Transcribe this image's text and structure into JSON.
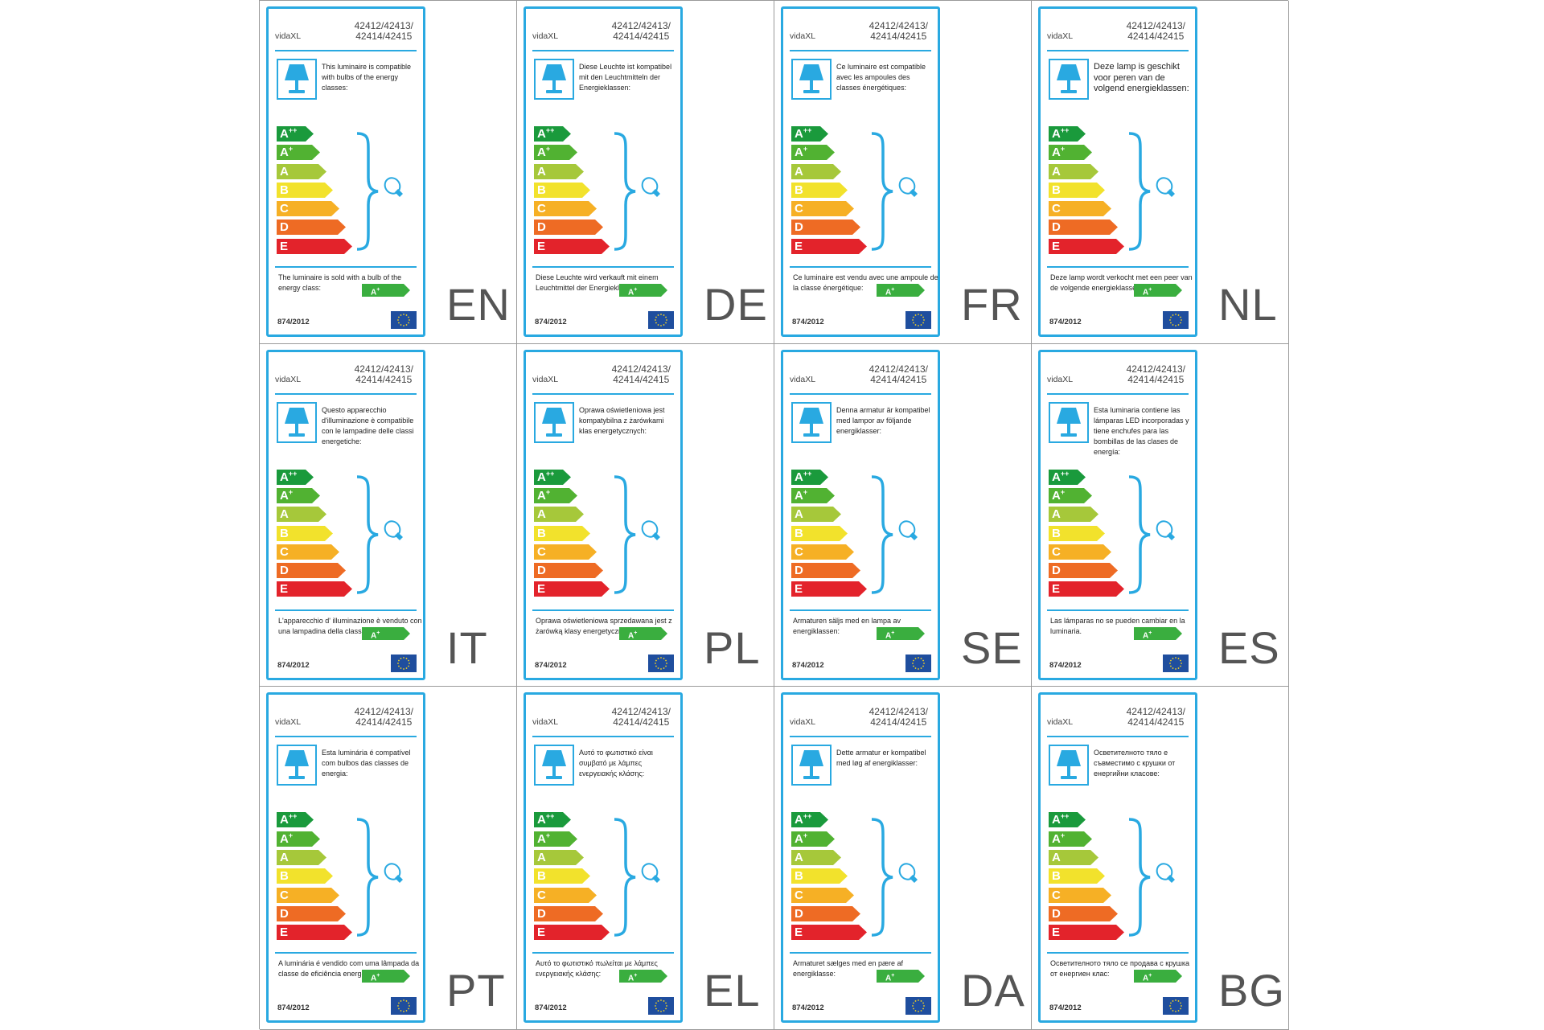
{
  "brand": "vidaXL",
  "model_line1": "42412/42413/",
  "model_line2": "42414/42415",
  "regulation": "874/2012",
  "energy_classes": [
    {
      "main": "A",
      "sup": "++",
      "color": "#1a9a3c"
    },
    {
      "main": "A",
      "sup": "+",
      "color": "#51b232"
    },
    {
      "main": "A",
      "sup": "",
      "color": "#a6c83a"
    },
    {
      "main": "B",
      "sup": "",
      "color": "#f2e22c"
    },
    {
      "main": "C",
      "sup": "",
      "color": "#f6b025"
    },
    {
      "main": "D",
      "sup": "",
      "color": "#ee6b24"
    },
    {
      "main": "E",
      "sup": "",
      "color": "#e3232b"
    }
  ],
  "sold_class": {
    "main": "A",
    "sup": "+",
    "color": "#3aae3f"
  },
  "colors": {
    "frame": "#29a9e1",
    "eu_flag": "#1f4e9e",
    "stars": "#f5d21f"
  },
  "icons": [
    "table-lamp-icon",
    "light-bulb-icon",
    "eu-flag-icon"
  ],
  "labels": [
    {
      "lang": "EN",
      "compat": "This luminaire is compatible with bulbs of the energy classes:",
      "sold": "The luminaire is sold with a bulb of the energy class:"
    },
    {
      "lang": "DE",
      "compat": "Diese Leuchte ist kompatibel mit den Leuchtmitteln der Energieklassen:",
      "sold": "Diese Leuchte wird verkauft mit einem Leuchtmittel der Energieklasse:"
    },
    {
      "lang": "FR",
      "compat": "Ce luminaire est compatible avec les ampoules des classes énergétiques:",
      "sold": "Ce luminaire est vendu avec une ampoule de la classe énergétique:"
    },
    {
      "lang": "NL",
      "compat": "Deze lamp is geschikt voor peren van de volgend energieklassen:",
      "sold": "Deze lamp wordt verkocht met een peer van de volgende energieklasse:"
    },
    {
      "lang": "IT",
      "compat": "Questo apparecchio d'illuminazione è compatibile con le lampadine delle classi energetiche:",
      "sold": "L'apparecchio d' illuminazione è venduto con una lampadina della classe energetica:"
    },
    {
      "lang": "PL",
      "compat": "Oprawa oświetleniowa jest kompatybilna z żarówkami klas energetycznych:",
      "sold": "Oprawa oświetleniowa sprzedawana jest z żarówką klasy energetycznej:"
    },
    {
      "lang": "SE",
      "compat": "Denna armatur är kompatibel med lampor av följande energiklasser:",
      "sold": "Armaturen säljs med en lampa av energiklassen:"
    },
    {
      "lang": "ES",
      "compat": "Esta luminaria contiene las lámparas LED incorporadas y tiene enchufes para las bombillas de las clases de energía:",
      "sold": "Las lámparas no se pueden cambiar en la luminaria."
    },
    {
      "lang": "PT",
      "compat": "Esta luminária é compatível com bulbos das classes de energia:",
      "sold": "A luminária é vendido com uma lâmpada da classe de eficiência energética:"
    },
    {
      "lang": "EL",
      "compat": "Αυτό το φωτιστικό είναι συμβατό με λάμπες ενεργειακής κλάσης:",
      "sold": "Αυτό το φωτιστικό πωλείται με λάμπες ενεργειακής κλάσης:"
    },
    {
      "lang": "DA",
      "compat": "Dette armatur er kompatibel med løg af energiklasser:",
      "sold": "Armaturet sælges med en pære af energiklasse:"
    },
    {
      "lang": "BG",
      "compat": "Осветителното тяло е съвместимо с крушки от енергийни класове:",
      "sold": "Осветителното тяло се продава с крушка от енергиен клас:"
    }
  ]
}
